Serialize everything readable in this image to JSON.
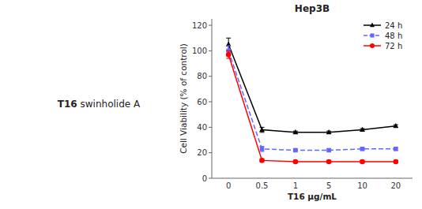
{
  "chart_data": {
    "type": "line",
    "title": "Hep3B",
    "x_label": "T16 μg/mL",
    "y_label": "Cell Viability (% of control)",
    "annotations": [
      "T16",
      "swinholide A"
    ],
    "categories": [
      "0",
      "0.5",
      "1",
      "5",
      "10",
      "20"
    ],
    "series": [
      {
        "name": "24 h",
        "color": "#000000",
        "marker": "triangle",
        "line_style": "solid",
        "values": [
          105,
          38,
          36,
          36,
          38,
          41
        ],
        "error": [
          5,
          2,
          1,
          1,
          1,
          1
        ]
      },
      {
        "name": "48 h",
        "color": "#6666ff",
        "marker": "square",
        "line_style": "dashed",
        "values": [
          100,
          23,
          22,
          22,
          23,
          23
        ],
        "error": [
          4,
          2,
          1,
          1,
          1,
          1
        ]
      },
      {
        "name": "72 h",
        "color": "#ff0000",
        "marker": "circle",
        "line_style": "solid",
        "values": [
          97,
          14,
          13,
          13,
          13,
          13
        ],
        "error": [
          3,
          1,
          1,
          1,
          1,
          1
        ]
      }
    ],
    "ylim": [
      0,
      125
    ],
    "yticks": [
      0,
      20,
      40,
      60,
      80,
      100,
      120
    ],
    "legend": "upper right"
  }
}
